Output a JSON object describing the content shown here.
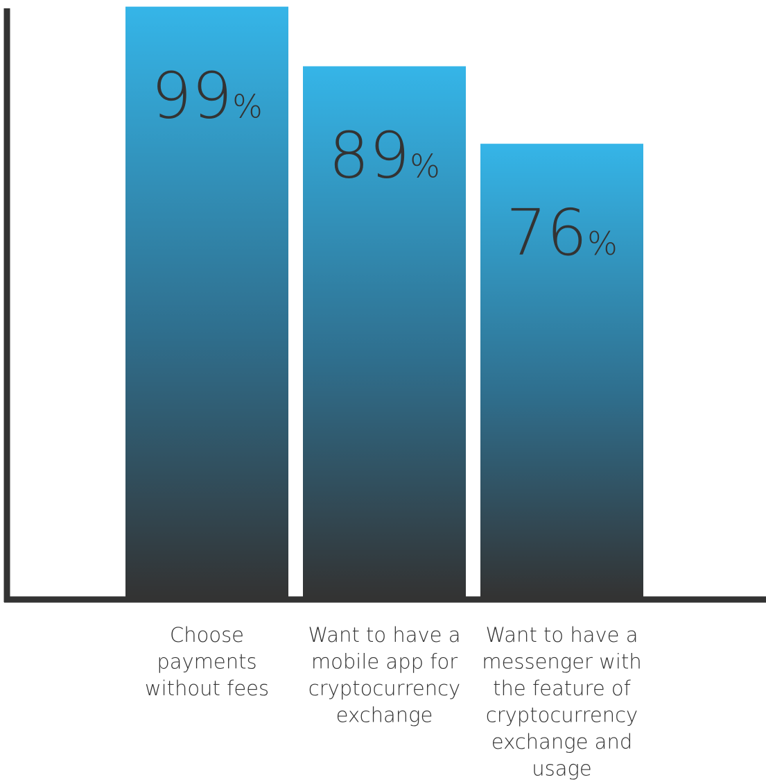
{
  "chart_data": {
    "type": "bar",
    "title": "",
    "xlabel": "",
    "ylabel": "",
    "ylim": [
      0,
      100
    ],
    "grid": false,
    "legend": "none",
    "unit_suffix": "%",
    "categories": [
      [
        "Choose",
        "payments",
        "without fees"
      ],
      [
        "Want to have a",
        "mobile app for",
        "cryptocurrency",
        "exchange"
      ],
      [
        "Want to have a",
        "messenger with",
        "the feature of",
        "cryptocurrency",
        "exchange and",
        "usage"
      ]
    ],
    "values": [
      99,
      89,
      76
    ],
    "colors": {
      "bar_top": "#35b5e8",
      "bar_mid": "#2f6f8e",
      "bar_bottom": "#333333",
      "axis": "#333333",
      "value_text": "#333333",
      "label_text": "#333333"
    }
  }
}
